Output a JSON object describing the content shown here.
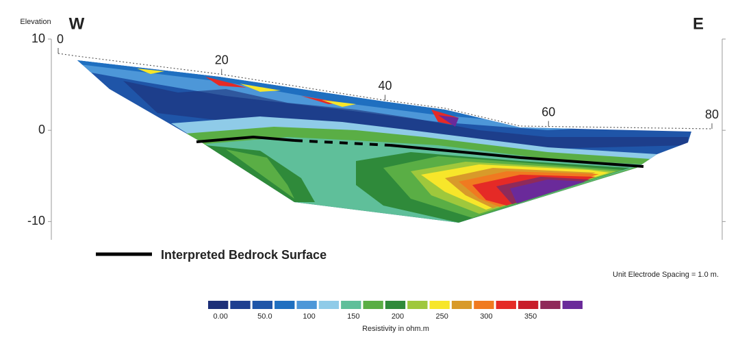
{
  "chart_data": {
    "type": "contour",
    "y_label": "Elevation",
    "west_label": "W",
    "east_label": "E",
    "xlim": [
      0,
      80
    ],
    "xticks": [
      0,
      20,
      40,
      60,
      80
    ],
    "ylim": [
      -12,
      10
    ],
    "yticks": [
      10,
      0,
      -10
    ],
    "legend_line": "Interpreted Bedrock Surface",
    "note": "Unit Electrode Spacing = 1.0 m.",
    "colorbar": {
      "title": "Resistivity in ohm.m",
      "colors": [
        "#1d2f78",
        "#1f3f90",
        "#1f55a8",
        "#1f6fc0",
        "#4d97d8",
        "#8fcbe8",
        "#5fbf9a",
        "#5aae45",
        "#2f8a3a",
        "#9fc83c",
        "#f7e62a",
        "#d89a2a",
        "#f07a20",
        "#e52a26",
        "#c81e2a",
        "#8f2a5a",
        "#6a2a9a"
      ],
      "ticks": [
        {
          "value": 0,
          "label": "0.00"
        },
        {
          "value": 50,
          "label": "50.0"
        },
        100,
        150,
        200,
        250,
        300,
        350
      ]
    }
  }
}
